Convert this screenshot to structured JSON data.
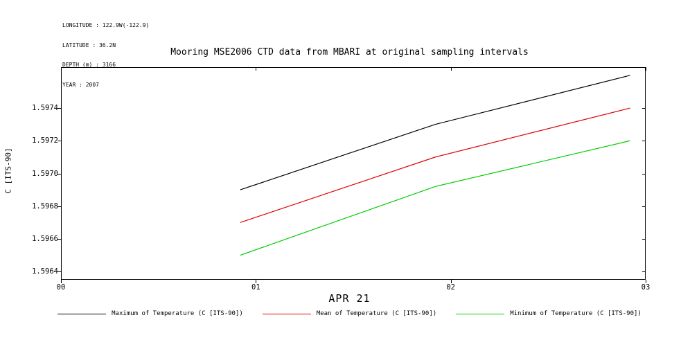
{
  "header": {
    "longitude": "LONGITUDE : 122.9W(-122.9)",
    "latitude": "LATITUDE : 36.2N",
    "depth": "DEPTH (m) : 3166",
    "year": "YEAR : 2007"
  },
  "chart_data": {
    "type": "line",
    "title": "Mooring MSE2006 CTD data from MBARI at original sampling intervals",
    "xlabel": "APR 21",
    "ylabel": "C [ITS-90]",
    "xlim": [
      0,
      3
    ],
    "ylim": [
      1.59635,
      1.59765
    ],
    "x_ticks": [
      {
        "value": 0,
        "label": "00"
      },
      {
        "value": 1,
        "label": "01"
      },
      {
        "value": 2,
        "label": "02"
      },
      {
        "value": 3,
        "label": "03"
      }
    ],
    "y_ticks": [
      {
        "value": 1.5964,
        "label": "1.5964"
      },
      {
        "value": 1.5966,
        "label": "1.5966"
      },
      {
        "value": 1.5968,
        "label": "1.5968"
      },
      {
        "value": 1.597,
        "label": "1.5970"
      },
      {
        "value": 1.5972,
        "label": "1.5972"
      },
      {
        "value": 1.5974,
        "label": "1.5974"
      }
    ],
    "grid": false,
    "legend_position": "bottom",
    "axis_color": "#000000",
    "series": [
      {
        "name": "Maximum of Temperature (C [ITS-90])",
        "color": "#000000",
        "x": [
          0.92,
          1.92,
          2.92
        ],
        "y": [
          1.5969,
          1.5973,
          1.5976
        ]
      },
      {
        "name": "Mean of Temperature (C [ITS-90])",
        "color": "#dd0000",
        "x": [
          0.92,
          1.92,
          2.92
        ],
        "y": [
          1.5967,
          1.5971,
          1.5974
        ]
      },
      {
        "name": "Minimum of Temperature (C [ITS-90])",
        "color": "#00cc00",
        "x": [
          0.92,
          1.92,
          2.92
        ],
        "y": [
          1.5965,
          1.59692,
          1.5972
        ]
      }
    ]
  }
}
